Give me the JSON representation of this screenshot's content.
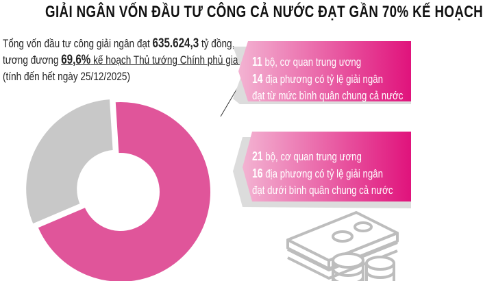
{
  "title": "GIẢI NGÂN VỐN ĐẦU TƯ CÔNG CẢ NƯỚC ĐẠT GẦN 70% KẾ HOẠCH",
  "intro": {
    "line1_pre": "Tổng vốn đầu tư công giải ngân đạt ",
    "amount": "635.624,3",
    "line1_post": " tỷ đồng,",
    "line2_pre": "tương đương ",
    "percent": "69,6%",
    "line2_post": " kế hoạch Thủ tướng Chính phủ giao",
    "line3": "(tính đến hết ngày 25/12/2025)"
  },
  "box_above": {
    "n1": "11",
    "t1": " bộ, cơ quan trung ương",
    "n2": "14",
    "t2": " địa phương có tỷ lệ giải ngân",
    "t3": "đạt từ mức bình quân chung cả nước"
  },
  "box_below": {
    "n1": "21",
    "t1": " bộ, cơ quan trung ương",
    "n2": "16",
    "t2": " địa phương có tỷ lệ giải ngân",
    "t3": "đạt dưới bình quân chung cả nước"
  },
  "chart_data": {
    "type": "pie",
    "donut": true,
    "slices": [
      {
        "value": 69.6,
        "color": "#e0559a"
      },
      {
        "value": 30.4,
        "color": "#c8c8c8"
      }
    ]
  },
  "icons": [
    "money-stack-icon",
    "coins-icon"
  ]
}
